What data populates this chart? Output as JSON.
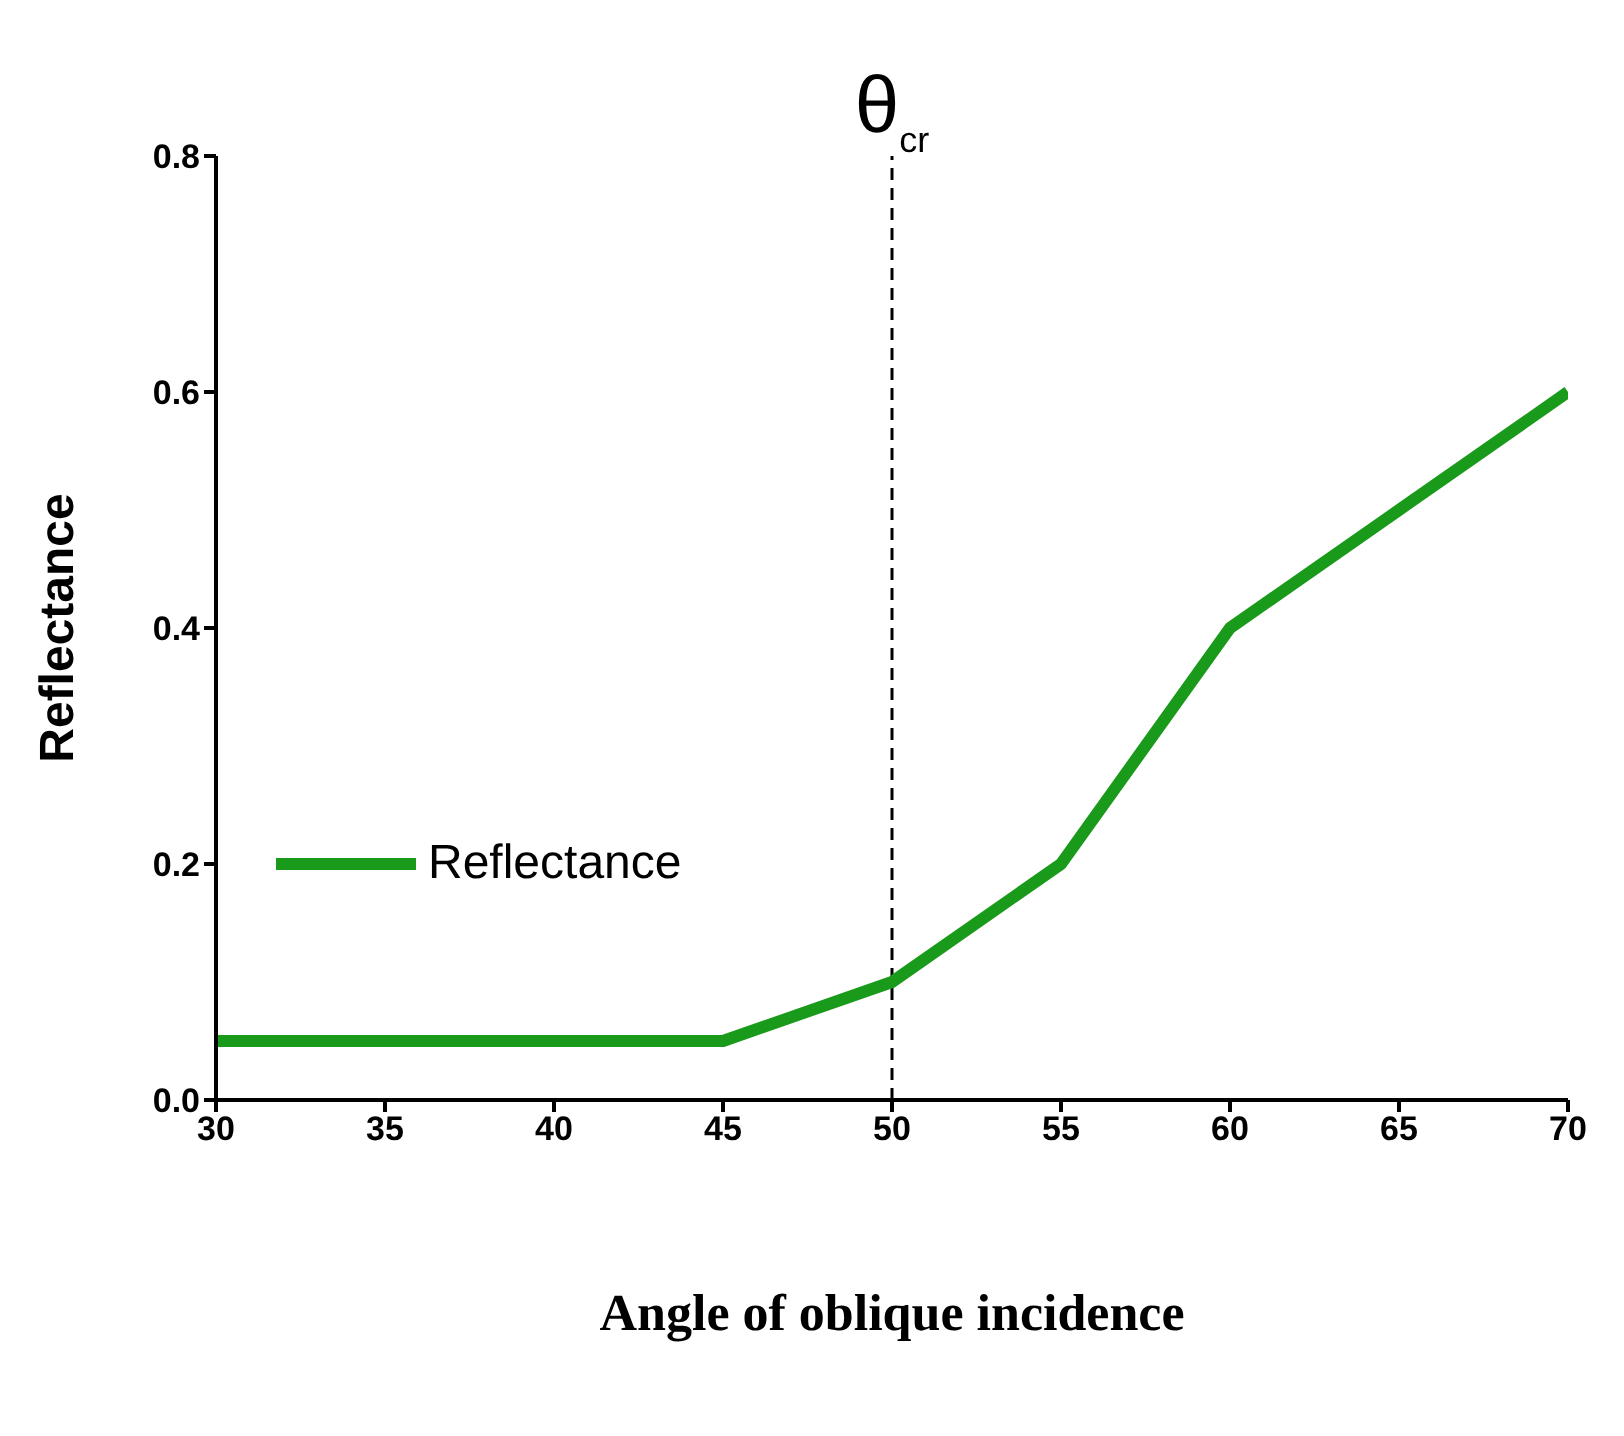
{
  "chart_data": {
    "type": "line",
    "xlabel": "Angle of oblique incidence",
    "ylabel": "Reflectance",
    "x": [
      30,
      35,
      40,
      45,
      50,
      55,
      60,
      65,
      70
    ],
    "series": [
      {
        "name": "Reflectance",
        "color": "#1a9a1a",
        "values": [
          0.05,
          0.05,
          0.05,
          0.05,
          0.1,
          0.2,
          0.4,
          0.5,
          0.6
        ]
      }
    ],
    "xlim": [
      30,
      70
    ],
    "xticks": [
      30,
      35,
      40,
      45,
      50,
      55,
      60,
      65,
      70
    ],
    "ylim": [
      0,
      0.8
    ],
    "yticks": [
      {
        "value": 0,
        "label": "0.0"
      },
      {
        "value": 0.2,
        "label": "0.2"
      },
      {
        "value": 0.4,
        "label": "0.4"
      },
      {
        "value": 0.6,
        "label": "0.6"
      },
      {
        "value": 0.8,
        "label": "0.8"
      }
    ],
    "ref_lines": [
      {
        "axis": "x",
        "value": 50,
        "label": "θ$_{cr}$",
        "line_style": "dashed"
      }
    ],
    "legend": "left",
    "marker": "none",
    "line_style": "solid",
    "grid": false
  }
}
